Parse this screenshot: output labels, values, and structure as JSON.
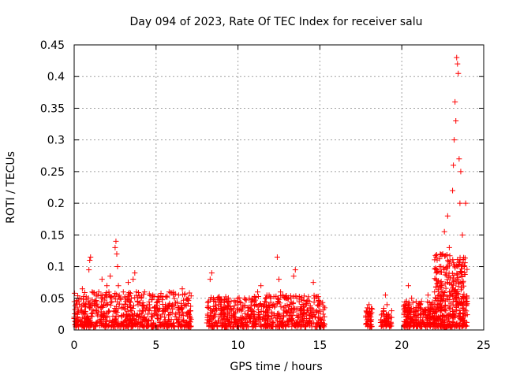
{
  "chart_data": {
    "type": "scatter",
    "title": "Day 094 of 2023, Rate Of TEC Index for receiver salu",
    "xlabel": "GPS time / hours",
    "ylabel": "ROTI / TECUs",
    "xlim": [
      0,
      25
    ],
    "ylim": [
      0,
      0.45
    ],
    "x_ticks": [
      0,
      5,
      10,
      15,
      20,
      25
    ],
    "x_tick_labels": [
      "0",
      "5",
      "10",
      "15",
      "20",
      "25"
    ],
    "y_ticks": [
      0,
      0.05,
      0.1,
      0.15,
      0.2,
      0.25,
      0.3,
      0.35,
      0.4,
      0.45
    ],
    "y_tick_labels": [
      "0",
      "0.05",
      "0.1",
      "0.15",
      "0.2",
      "0.25",
      "0.3",
      "0.35",
      "0.4",
      "0.45"
    ],
    "grid": true,
    "marker": "plus",
    "color": "#ff0000",
    "series": [
      {
        "points": [
          [
            0.1,
            0.02
          ],
          [
            0.2,
            0.035
          ],
          [
            0.3,
            0.05
          ],
          [
            0.4,
            0.03
          ],
          [
            0.5,
            0.065
          ],
          [
            0.6,
            0.025
          ],
          [
            0.7,
            0.04
          ],
          [
            0.8,
            0.02
          ],
          [
            0.9,
            0.095
          ],
          [
            0.95,
            0.11
          ],
          [
            1.0,
            0.115
          ],
          [
            1.1,
            0.06
          ],
          [
            1.2,
            0.03
          ],
          [
            1.3,
            0.045
          ],
          [
            1.4,
            0.025
          ],
          [
            1.5,
            0.06
          ],
          [
            1.6,
            0.035
          ],
          [
            1.7,
            0.08
          ],
          [
            1.8,
            0.04
          ],
          [
            1.9,
            0.02
          ],
          [
            2.0,
            0.07
          ],
          [
            2.1,
            0.03
          ],
          [
            2.2,
            0.085
          ],
          [
            2.3,
            0.045
          ],
          [
            2.4,
            0.03
          ],
          [
            2.5,
            0.13
          ],
          [
            2.55,
            0.14
          ],
          [
            2.6,
            0.12
          ],
          [
            2.65,
            0.1
          ],
          [
            2.7,
            0.07
          ],
          [
            2.8,
            0.05
          ],
          [
            2.9,
            0.035
          ],
          [
            3.0,
            0.06
          ],
          [
            3.1,
            0.04
          ],
          [
            3.2,
            0.025
          ],
          [
            3.3,
            0.075
          ],
          [
            3.4,
            0.045
          ],
          [
            3.5,
            0.03
          ],
          [
            3.6,
            0.08
          ],
          [
            3.7,
            0.09
          ],
          [
            3.8,
            0.06
          ],
          [
            3.9,
            0.04
          ],
          [
            4.0,
            0.03
          ],
          [
            4.1,
            0.05
          ],
          [
            4.2,
            0.02
          ],
          [
            4.3,
            0.06
          ],
          [
            4.4,
            0.035
          ],
          [
            4.5,
            0.025
          ],
          [
            4.6,
            0.04
          ],
          [
            4.8,
            0.055
          ],
          [
            5.0,
            0.03
          ],
          [
            5.2,
            0.045
          ],
          [
            5.4,
            0.025
          ],
          [
            5.6,
            0.035
          ],
          [
            5.8,
            0.06
          ],
          [
            6.0,
            0.04
          ],
          [
            6.2,
            0.025
          ],
          [
            6.4,
            0.035
          ],
          [
            6.6,
            0.065
          ],
          [
            6.8,
            0.04
          ],
          [
            7.0,
            0.025
          ],
          [
            7.1,
            0.03
          ],
          [
            8.3,
            0.08
          ],
          [
            8.4,
            0.09
          ],
          [
            8.5,
            0.05
          ],
          [
            8.6,
            0.03
          ],
          [
            8.8,
            0.04
          ],
          [
            9.0,
            0.025
          ],
          [
            9.2,
            0.035
          ],
          [
            9.4,
            0.045
          ],
          [
            9.6,
            0.03
          ],
          [
            9.8,
            0.02
          ],
          [
            10.0,
            0.04
          ],
          [
            10.2,
            0.03
          ],
          [
            10.4,
            0.05
          ],
          [
            10.6,
            0.035
          ],
          [
            10.8,
            0.025
          ],
          [
            11.0,
            0.045
          ],
          [
            11.2,
            0.06
          ],
          [
            11.4,
            0.07
          ],
          [
            11.6,
            0.04
          ],
          [
            11.8,
            0.03
          ],
          [
            12.0,
            0.05
          ],
          [
            12.2,
            0.025
          ],
          [
            12.4,
            0.115
          ],
          [
            12.5,
            0.08
          ],
          [
            12.6,
            0.06
          ],
          [
            12.8,
            0.035
          ],
          [
            13.0,
            0.05
          ],
          [
            13.2,
            0.03
          ],
          [
            13.4,
            0.085
          ],
          [
            13.5,
            0.095
          ],
          [
            13.6,
            0.05
          ],
          [
            13.8,
            0.03
          ],
          [
            14.0,
            0.025
          ],
          [
            14.2,
            0.045
          ],
          [
            14.4,
            0.035
          ],
          [
            14.6,
            0.075
          ],
          [
            14.8,
            0.03
          ],
          [
            15.0,
            0.045
          ],
          [
            15.2,
            0.025
          ],
          [
            15.3,
            0.035
          ],
          [
            17.8,
            0.02
          ],
          [
            17.9,
            0.035
          ],
          [
            18.0,
            0.04
          ],
          [
            18.1,
            0.025
          ],
          [
            18.9,
            0.03
          ],
          [
            19.0,
            0.055
          ],
          [
            19.1,
            0.04
          ],
          [
            19.2,
            0.025
          ],
          [
            19.3,
            0.02
          ],
          [
            20.2,
            0.03
          ],
          [
            20.3,
            0.045
          ],
          [
            20.4,
            0.07
          ],
          [
            20.5,
            0.03
          ],
          [
            20.6,
            0.05
          ],
          [
            20.8,
            0.02
          ],
          [
            21.0,
            0.035
          ],
          [
            21.2,
            0.045
          ],
          [
            21.4,
            0.03
          ],
          [
            21.6,
            0.055
          ],
          [
            21.8,
            0.04
          ],
          [
            22.0,
            0.06
          ],
          [
            22.1,
            0.08
          ],
          [
            22.2,
            0.05
          ],
          [
            22.3,
            0.1
          ],
          [
            22.4,
            0.07
          ],
          [
            22.5,
            0.12
          ],
          [
            22.6,
            0.155
          ],
          [
            22.7,
            0.09
          ],
          [
            22.8,
            0.18
          ],
          [
            22.9,
            0.13
          ],
          [
            23.0,
            0.06
          ],
          [
            23.1,
            0.22
          ],
          [
            23.15,
            0.26
          ],
          [
            23.2,
            0.3
          ],
          [
            23.25,
            0.36
          ],
          [
            23.3,
            0.33
          ],
          [
            23.35,
            0.43
          ],
          [
            23.4,
            0.42
          ],
          [
            23.45,
            0.405
          ],
          [
            23.5,
            0.27
          ],
          [
            23.55,
            0.2
          ],
          [
            23.6,
            0.25
          ],
          [
            23.7,
            0.15
          ],
          [
            23.8,
            0.1
          ],
          [
            23.9,
            0.2
          ],
          [
            23.95,
            0.04
          ]
        ]
      }
    ],
    "density_blocks": [
      {
        "x_start": 0.0,
        "x_end": 7.2,
        "y_min": 0.005,
        "y_max": 0.06,
        "count": 650
      },
      {
        "x_start": 8.1,
        "x_end": 15.3,
        "y_min": 0.005,
        "y_max": 0.055,
        "count": 650
      },
      {
        "x_start": 17.8,
        "x_end": 18.2,
        "y_min": 0.005,
        "y_max": 0.035,
        "count": 40
      },
      {
        "x_start": 18.7,
        "x_end": 19.4,
        "y_min": 0.005,
        "y_max": 0.035,
        "count": 50
      },
      {
        "x_start": 20.1,
        "x_end": 22.0,
        "y_min": 0.005,
        "y_max": 0.045,
        "count": 220
      },
      {
        "x_start": 22.0,
        "x_end": 24.0,
        "y_min": 0.005,
        "y_max": 0.12,
        "count": 380
      }
    ]
  }
}
